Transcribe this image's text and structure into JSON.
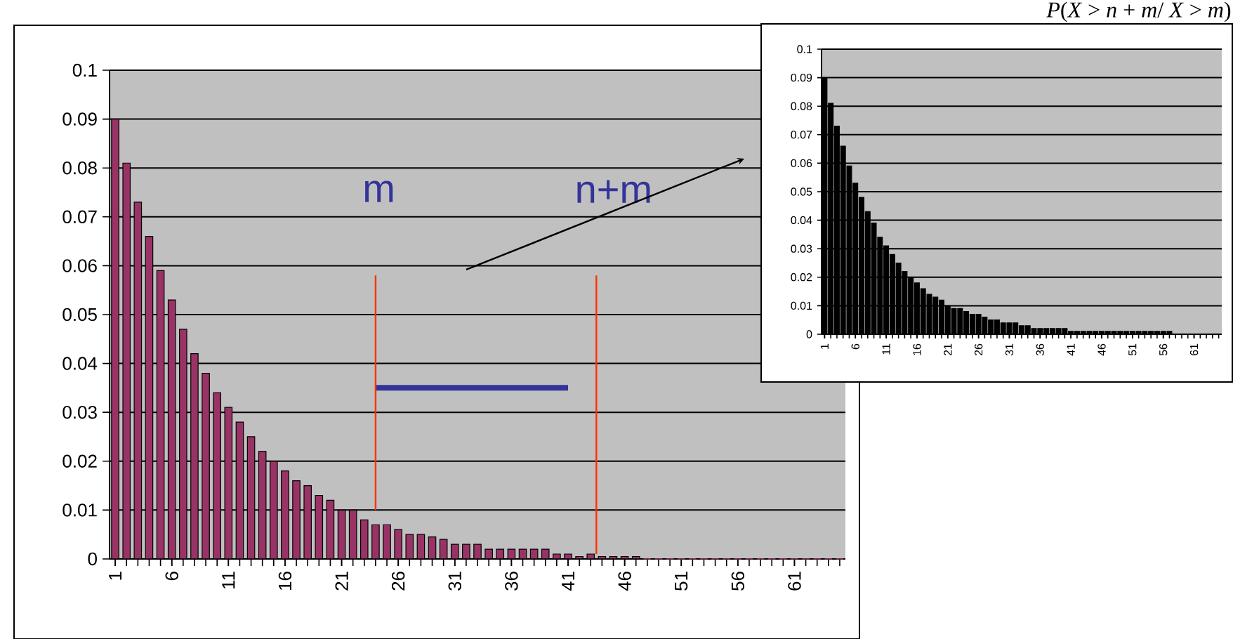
{
  "chart_data": [
    {
      "type": "bar",
      "title": "*P*(*X* > *n* + *m*/ *X* > *m*)",
      "x": [
        1,
        2,
        3,
        4,
        5,
        6,
        7,
        8,
        9,
        10,
        11,
        12,
        13,
        14,
        15,
        16,
        17,
        18,
        19,
        20,
        21,
        22,
        23,
        24,
        25,
        26,
        27,
        28,
        29,
        30,
        31,
        32,
        33,
        34,
        35,
        36,
        37,
        38,
        39,
        40,
        41,
        42,
        43,
        44,
        45,
        46,
        47,
        48,
        49,
        50,
        51,
        52,
        53,
        54,
        55,
        56,
        57,
        58,
        59,
        60,
        61,
        62,
        63,
        64,
        65
      ],
      "series": [
        {
          "color": "#993366",
          "values": [
            0.09,
            0.081,
            0.073,
            0.066,
            0.059,
            0.053,
            0.047,
            0.042,
            0.038,
            0.034,
            0.031,
            0.028,
            0.025,
            0.022,
            0.02,
            0.018,
            0.016,
            0.015,
            0.013,
            0.012,
            0.01,
            0.01,
            0.008,
            0.007,
            0.007,
            0.006,
            0.005,
            0.005,
            0.0045,
            0.004,
            0.003,
            0.003,
            0.003,
            0.002,
            0.002,
            0.002,
            0.002,
            0.002,
            0.002,
            0.001,
            0.001,
            0.0005,
            0.001,
            0.0005,
            0.0005,
            0.0005,
            0.0005,
            0,
            0,
            0,
            0,
            0,
            0,
            0,
            0,
            0,
            0,
            0,
            0,
            0,
            0,
            0,
            0,
            0,
            0
          ]
        },
        {
          "type": "line",
          "color": "#333399",
          "x": [
            24,
            41
          ],
          "values": [
            0.035,
            0.035
          ]
        },
        {
          "type": "line",
          "color": "#ff3300",
          "x": [
            24,
            24
          ],
          "values": [
            0.01,
            0.058
          ]
        },
        {
          "type": "line",
          "color": "#ff3300",
          "x": [
            43.5,
            43.5
          ],
          "values": [
            0.001,
            0.058
          ]
        }
      ],
      "xlim": [
        0.5,
        65.5
      ],
      "ylim": [
        0,
        0.1
      ],
      "xticks": [
        1,
        6,
        11,
        16,
        21,
        26,
        31,
        36,
        41,
        46,
        51,
        56,
        61
      ],
      "yticks": [
        0,
        0.01,
        0.02,
        0.03,
        0.04,
        0.05,
        0.06,
        0.07,
        0.08,
        0.09,
        0.1
      ],
      "grid": "y",
      "annotations": [
        "m",
        "n+m"
      ]
    },
    {
      "type": "bar",
      "x": [
        1,
        2,
        3,
        4,
        5,
        6,
        7,
        8,
        9,
        10,
        11,
        12,
        13,
        14,
        15,
        16,
        17,
        18,
        19,
        20,
        21,
        22,
        23,
        24,
        25,
        26,
        27,
        28,
        29,
        30,
        31,
        32,
        33,
        34,
        35,
        36,
        37,
        38,
        39,
        40,
        41,
        42,
        43,
        44,
        45,
        46,
        47,
        48,
        49,
        50,
        51,
        52,
        53,
        54,
        55,
        56,
        57,
        58,
        59,
        60,
        61,
        62,
        63,
        64,
        65
      ],
      "series": [
        {
          "color": "#000000",
          "values": [
            0.09,
            0.081,
            0.073,
            0.066,
            0.059,
            0.053,
            0.048,
            0.043,
            0.039,
            0.034,
            0.031,
            0.028,
            0.025,
            0.022,
            0.02,
            0.018,
            0.016,
            0.014,
            0.013,
            0.012,
            0.01,
            0.009,
            0.009,
            0.008,
            0.007,
            0.007,
            0.006,
            0.005,
            0.005,
            0.004,
            0.004,
            0.004,
            0.003,
            0.003,
            0.002,
            0.002,
            0.002,
            0.002,
            0.002,
            0.002,
            0.001,
            0.001,
            0.001,
            0.001,
            0.001,
            0.001,
            0.001,
            0.001,
            0.001,
            0.001,
            0.001,
            0.001,
            0.001,
            0.001,
            0.001,
            0.001,
            0.001,
            0,
            0,
            0,
            0,
            0,
            0,
            0,
            0
          ]
        }
      ],
      "xlim": [
        0.5,
        65.5
      ],
      "ylim": [
        0,
        0.1
      ],
      "xticks": [
        1,
        6,
        11,
        16,
        21,
        26,
        31,
        36,
        41,
        46,
        51,
        56,
        61
      ],
      "yticks": [
        0,
        0.01,
        0.02,
        0.03,
        0.04,
        0.05,
        0.06,
        0.07,
        0.08,
        0.09,
        0.1
      ],
      "grid": "y"
    }
  ]
}
